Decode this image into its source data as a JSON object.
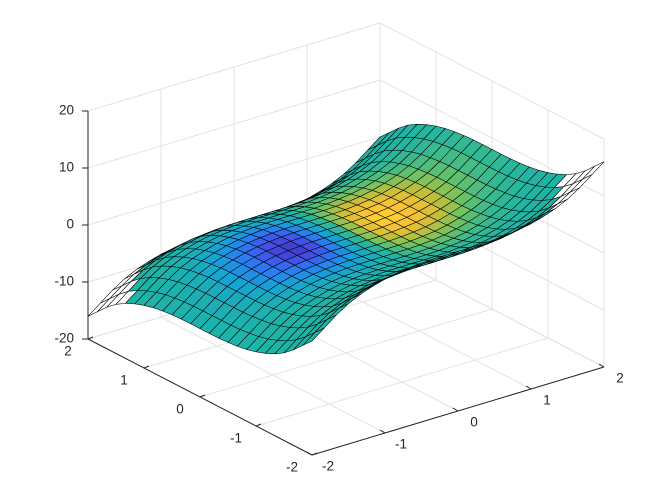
{
  "chart_data": {
    "type": "surface",
    "title": "",
    "xlabel": "",
    "ylabel": "",
    "zlabel": "",
    "x": [
      -2,
      -1.5,
      -1,
      -0.5,
      0,
      0.5,
      1,
      1.5,
      2
    ],
    "y": [
      -2,
      -1.5,
      -1,
      -0.5,
      0,
      0.5,
      1,
      1.5,
      2
    ],
    "z": [
      [
        0,
        4.625,
        7,
        7.875,
        8,
        8.125,
        9,
        11.375,
        16
      ],
      [
        -4.625,
        0,
        2.375,
        3.25,
        3.375,
        3.5,
        4.375,
        6.75,
        11.375
      ],
      [
        -7,
        -2.375,
        0,
        0.875,
        1,
        1.125,
        2,
        4.375,
        9
      ],
      [
        -7.875,
        -3.25,
        -0.875,
        0,
        0.125,
        0.25,
        1.125,
        3.5,
        8.125
      ],
      [
        -8,
        -3.375,
        -1,
        -0.125,
        0,
        0.125,
        1,
        3.375,
        8
      ],
      [
        -8.125,
        -3.5,
        -1.125,
        -0.25,
        -0.125,
        0,
        0.875,
        3.25,
        7.875
      ],
      [
        -9,
        -4.375,
        -2,
        -1.125,
        -1,
        -0.875,
        0,
        2.375,
        7
      ],
      [
        -11.375,
        -6.75,
        -4.375,
        -3.5,
        -3.375,
        -3.25,
        -2.375,
        0,
        4.625
      ],
      [
        -16,
        -11.375,
        -9,
        -8.125,
        -8,
        -7.875,
        -7,
        -4.625,
        0
      ]
    ],
    "c": [
      [
        0,
        0,
        0,
        0,
        0,
        0,
        0,
        0,
        0
      ],
      [
        0,
        0,
        -0.01,
        -0.01,
        0,
        0.01,
        0.01,
        0,
        0
      ],
      [
        0,
        -0.02,
        -0.06,
        -0.08,
        -0.01,
        0.07,
        0.07,
        0.02,
        0
      ],
      [
        -0.01,
        -0.08,
        -0.29,
        -0.38,
        -0.05,
        0.35,
        0.33,
        0.11,
        0.02
      ],
      [
        -0.02,
        -0.18,
        -0.61,
        -0.82,
        -0.1,
        0.74,
        0.7,
        0.24,
        0.04
      ],
      [
        -0.02,
        -0.16,
        -0.56,
        -0.75,
        -0.09,
        0.68,
        0.64,
        0.22,
        0.03
      ],
      [
        -0.01,
        -0.06,
        -0.22,
        -0.3,
        -0.04,
        0.27,
        0.25,
        0.09,
        0.01
      ],
      [
        0,
        -0.01,
        -0.04,
        -0.05,
        -0.01,
        0.05,
        0.04,
        0.02,
        0
      ],
      [
        0,
        0,
        0,
        0,
        0,
        0,
        0,
        0,
        0
      ]
    ],
    "colormap": "parula",
    "clim": [
      -1,
      1
    ],
    "face_white_outside_z": [
      -9.5,
      9.5
    ],
    "out_of_range_color": "#ffffff",
    "edge_color": "#000000",
    "xlim": [
      -2,
      2
    ],
    "ylim": [
      -2,
      2
    ],
    "zlim": [
      -20,
      20
    ],
    "xticks": [
      -2,
      -1,
      0,
      1,
      2
    ],
    "yticks": [
      -2,
      -1,
      0,
      1,
      2
    ],
    "zticks": [
      -20,
      -10,
      0,
      10,
      20
    ],
    "xtick_labels": [
      "-2",
      "-1",
      "0",
      "1",
      "2"
    ],
    "ytick_labels": [
      "-2",
      "-1",
      "0",
      "1",
      "2"
    ],
    "ztick_labels": [
      "-20",
      "-10",
      "0",
      "10",
      "20"
    ],
    "grid": true,
    "view": "3d-default",
    "colors": {
      "axis": "#262626",
      "grid": "#e3e3e3",
      "background": "#ffffff"
    }
  }
}
